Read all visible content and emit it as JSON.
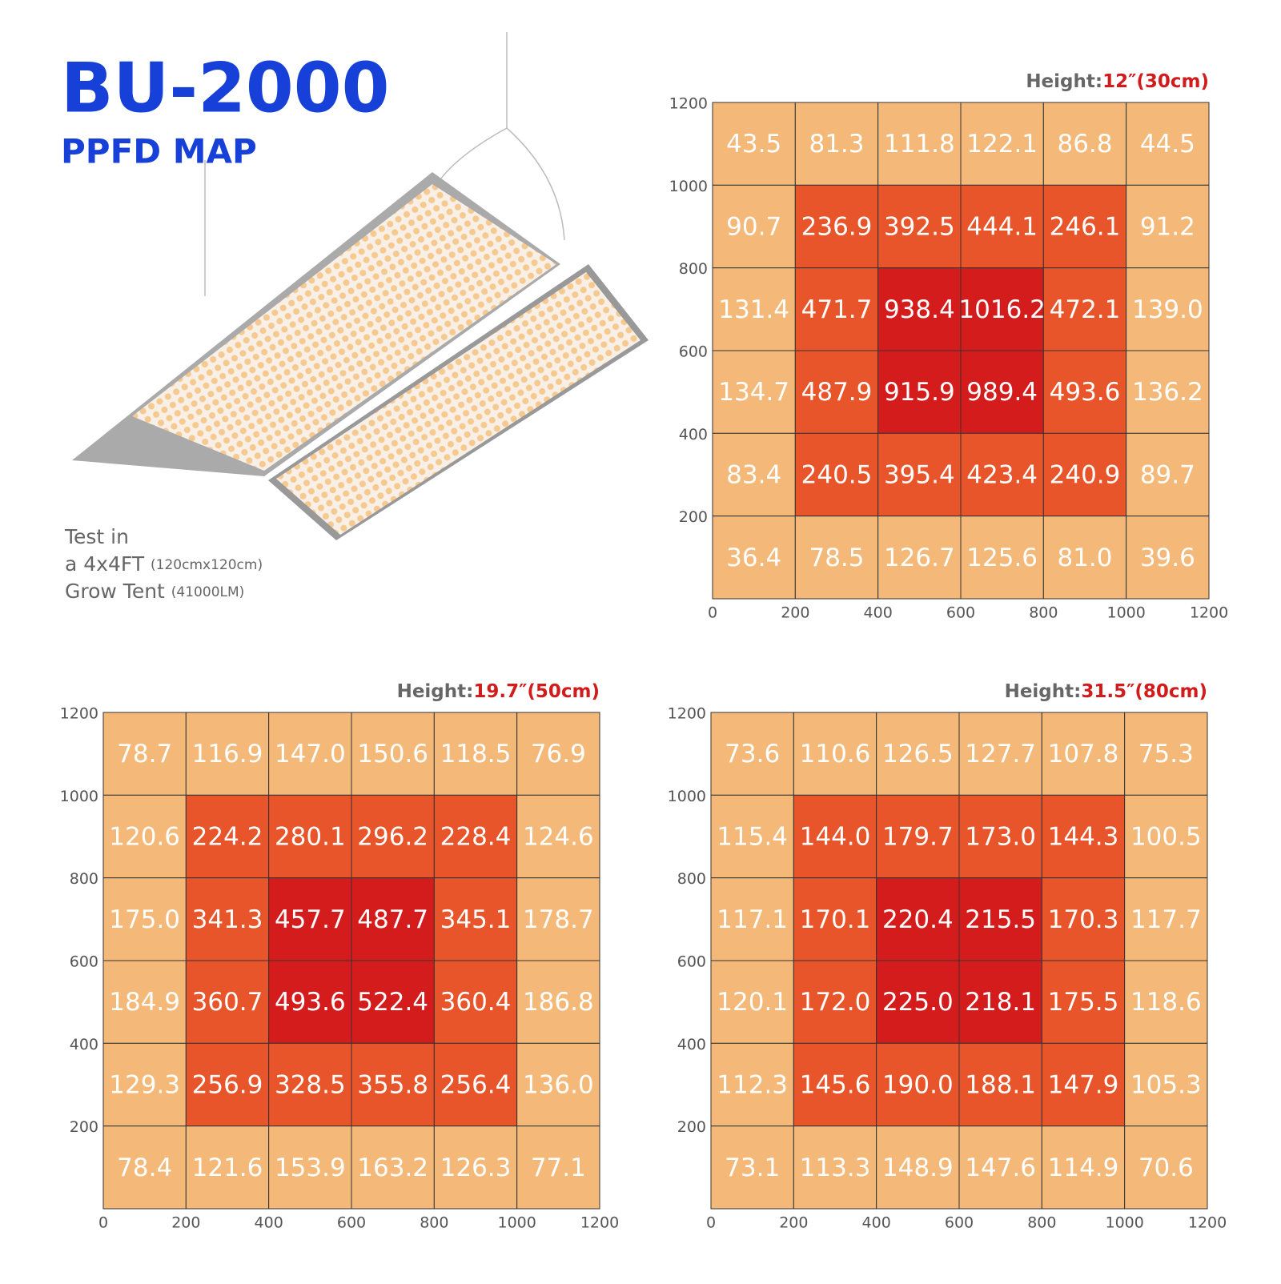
{
  "header": {
    "title": "BU-2000",
    "subtitle": "PPFD MAP",
    "note": {
      "line1": "Test in",
      "line2": "a 4x4FT",
      "line2_small": "(120cmx120cm)",
      "line3": "Grow Tent",
      "line3_small": "(41000LM)"
    }
  },
  "chart_data": [
    {
      "type": "heatmap",
      "title_prefix": "Height:",
      "title": "12″(30cm)",
      "xlim": [
        0,
        1200
      ],
      "ylim": [
        0,
        1200
      ],
      "xticks": [
        0,
        200,
        400,
        600,
        800,
        1000,
        1200
      ],
      "yticks": [
        200,
        400,
        600,
        800,
        1000,
        1200
      ],
      "ring_colors": [
        "#f4b978",
        "#e8552a",
        "#d41c1c"
      ],
      "values": [
        [
          43.5,
          81.3,
          111.8,
          122.1,
          86.8,
          44.5
        ],
        [
          90.7,
          236.9,
          392.5,
          444.1,
          246.1,
          91.2
        ],
        [
          131.4,
          471.7,
          938.4,
          1016.2,
          472.1,
          139.0
        ],
        [
          134.7,
          487.9,
          915.9,
          989.4,
          493.6,
          136.2
        ],
        [
          83.4,
          240.5,
          395.4,
          423.4,
          240.9,
          89.7
        ],
        [
          36.4,
          78.5,
          126.7,
          125.6,
          81.0,
          39.6
        ]
      ],
      "value_labels": [
        [
          "43.5",
          "81.3",
          "111.8",
          "122.1",
          "86.8",
          "44.5"
        ],
        [
          "90.7",
          "236.9",
          "392.5",
          "444.1",
          "246.1",
          "91.2"
        ],
        [
          "131.4",
          "471.7",
          "938.4",
          "1016.2",
          "472.1",
          "139.0"
        ],
        [
          "134.7",
          "487.9",
          "915.9",
          "989.4",
          "493.6",
          "136.2"
        ],
        [
          "83.4",
          "240.5",
          "395.4",
          "423.4",
          "240.9",
          "89.7"
        ],
        [
          "36.4",
          "78.5",
          "126.7",
          "125.6",
          "81.0",
          "39.6"
        ]
      ]
    },
    {
      "type": "heatmap",
      "title_prefix": "Height:",
      "title": "19.7″(50cm)",
      "xlim": [
        0,
        1200
      ],
      "ylim": [
        0,
        1200
      ],
      "xticks": [
        0,
        200,
        400,
        600,
        800,
        1000,
        1200
      ],
      "yticks": [
        200,
        400,
        600,
        800,
        1000,
        1200
      ],
      "ring_colors": [
        "#f4b978",
        "#e8552a",
        "#d41c1c"
      ],
      "values": [
        [
          78.7,
          116.9,
          147.0,
          150.6,
          118.5,
          76.9
        ],
        [
          120.6,
          224.2,
          280.1,
          296.2,
          228.4,
          124.6
        ],
        [
          175.0,
          341.3,
          457.7,
          487.7,
          345.1,
          178.7
        ],
        [
          184.9,
          360.7,
          493.6,
          522.4,
          360.4,
          186.8
        ],
        [
          129.3,
          256.9,
          328.5,
          355.8,
          256.4,
          136.0
        ],
        [
          78.4,
          121.6,
          153.9,
          163.2,
          126.3,
          77.1
        ]
      ],
      "value_labels": [
        [
          "78.7",
          "116.9",
          "147.0",
          "150.6",
          "118.5",
          "76.9"
        ],
        [
          "120.6",
          "224.2",
          "280.1",
          "296.2",
          "228.4",
          "124.6"
        ],
        [
          "175.0",
          "341.3",
          "457.7",
          "487.7",
          "345.1",
          "178.7"
        ],
        [
          "184.9",
          "360.7",
          "493.6",
          "522.4",
          "360.4",
          "186.8"
        ],
        [
          "129.3",
          "256.9",
          "328.5",
          "355.8",
          "256.4",
          "136.0"
        ],
        [
          "78.4",
          "121.6",
          "153.9",
          "163.2",
          "126.3",
          "77.1"
        ]
      ]
    },
    {
      "type": "heatmap",
      "title_prefix": "Height:",
      "title": "31.5″(80cm)",
      "xlim": [
        0,
        1200
      ],
      "ylim": [
        0,
        1200
      ],
      "xticks": [
        0,
        200,
        400,
        600,
        800,
        1000,
        1200
      ],
      "yticks": [
        200,
        400,
        600,
        800,
        1000,
        1200
      ],
      "ring_colors": [
        "#f4b978",
        "#e8552a",
        "#d41c1c"
      ],
      "values": [
        [
          73.6,
          110.6,
          126.5,
          127.7,
          107.8,
          75.3
        ],
        [
          115.4,
          144.0,
          179.7,
          173.0,
          144.3,
          100.5
        ],
        [
          117.1,
          170.1,
          220.4,
          215.5,
          170.3,
          117.7
        ],
        [
          120.1,
          172.0,
          225.0,
          218.1,
          175.5,
          118.6
        ],
        [
          112.3,
          145.6,
          190.0,
          188.1,
          147.9,
          105.3
        ],
        [
          73.1,
          113.3,
          148.9,
          147.6,
          114.9,
          70.6
        ]
      ],
      "value_labels": [
        [
          "73.6",
          "110.6",
          "126.5",
          "127.7",
          "107.8",
          "75.3"
        ],
        [
          "115.4",
          "144.0",
          "179.7",
          "173.0",
          "144.3",
          "100.5"
        ],
        [
          "117.1",
          "170.1",
          "220.4",
          "215.5",
          "170.3",
          "117.7"
        ],
        [
          "120.1",
          "172.0",
          "225.0",
          "218.1",
          "175.5",
          "118.6"
        ],
        [
          "112.3",
          "145.6",
          "190.0",
          "188.1",
          "147.9",
          "105.3"
        ],
        [
          "73.1",
          "113.3",
          "148.9",
          "147.6",
          "114.9",
          "70.6"
        ]
      ]
    }
  ]
}
